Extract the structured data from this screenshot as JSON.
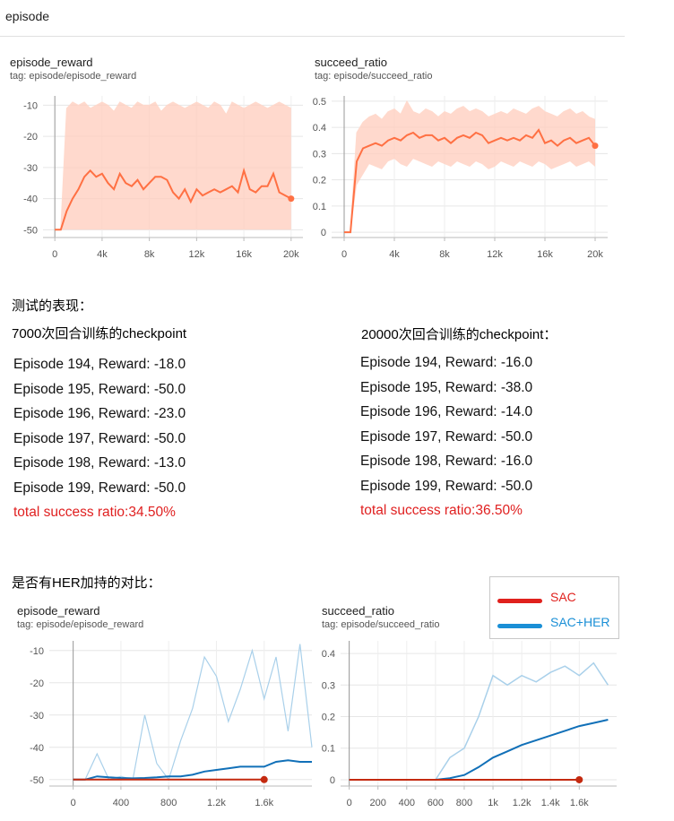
{
  "section": {
    "title": "episode"
  },
  "top_charts": {
    "reward": {
      "title": "episode_reward",
      "tag": "tag: episode/episode_reward"
    },
    "ratio": {
      "title": "succeed_ratio",
      "tag": "tag: episode/succeed_ratio"
    }
  },
  "notes": {
    "test_heading": "测试的表现：",
    "col1_heading": "7000次回合训练的checkpoint",
    "col2_heading": "20000次回合训练的checkpoint：",
    "col1_lines": [
      "Episode 194, Reward: -18.0",
      "Episode 195, Reward: -50.0",
      "Episode 196, Reward: -23.0",
      "Episode 197, Reward: -50.0",
      "Episode 198, Reward: -13.0",
      "Episode 199, Reward: -50.0"
    ],
    "col1_total": "total success ratio:34.50%",
    "col2_lines": [
      "Episode 194, Reward: -16.0",
      "Episode 195, Reward: -38.0",
      "Episode 196, Reward: -14.0",
      "Episode 197, Reward: -50.0",
      "Episode 198, Reward: -16.0",
      "Episode 199, Reward: -50.0"
    ],
    "col2_total": "total success ratio:36.50%",
    "compare_heading": "是否有HER加持的对比："
  },
  "bottom_charts": {
    "reward": {
      "title": "episode_reward",
      "tag": "tag: episode/episode_reward"
    },
    "ratio": {
      "title": "succeed_ratio",
      "tag": "tag: episode/succeed_ratio"
    }
  },
  "legend": {
    "sac": "SAC",
    "sac_her": "SAC+HER",
    "sac_color": "#e0211d",
    "sac_her_color": "#1a8fd6"
  },
  "colors": {
    "orange": "#ff7043",
    "orange_faint": "#ffccbc",
    "blue": "#1170b8",
    "blue_faint": "#a9d0ea",
    "red": "#c42a10"
  },
  "chart_data": [
    {
      "type": "line",
      "title": "episode_reward",
      "xticks": [
        "0",
        "4k",
        "8k",
        "12k",
        "16k",
        "20k"
      ],
      "yticks": [
        "-10",
        "-20",
        "-30",
        "-40",
        "-50"
      ],
      "xlim": [
        -1000,
        21000
      ],
      "ylim": [
        -52.5,
        -7
      ],
      "series": [
        {
          "x": [
            0,
            500,
            1000,
            1500,
            2000,
            2500,
            3000,
            3500,
            4000,
            4500,
            5000,
            5500,
            6000,
            6500,
            7000,
            7500,
            8000,
            8500,
            9000,
            9500,
            10000,
            10500,
            11000,
            11500,
            12000,
            12500,
            13000,
            13500,
            14000,
            14500,
            15000,
            15500,
            16000,
            16500,
            17000,
            17500,
            18000,
            18500,
            19000,
            19500,
            20000
          ],
          "smoothed": [
            -50,
            -50,
            -44,
            -40,
            -37,
            -33,
            -31,
            -33,
            -32,
            -35,
            -37,
            -32,
            -35,
            -36,
            -34,
            -37,
            -35,
            -33,
            -33,
            -34,
            -38,
            -40,
            -37,
            -41,
            -37,
            -39,
            -38,
            -37,
            -38,
            -37,
            -36,
            -38,
            -31,
            -37,
            -38,
            -36,
            -36,
            -32,
            -38,
            -39,
            -40
          ],
          "raw_min": [
            -50,
            -50,
            -50,
            -50,
            -50,
            -50,
            -50,
            -50,
            -50,
            -50,
            -50,
            -50,
            -50,
            -50,
            -50,
            -50,
            -50,
            -50,
            -50,
            -50,
            -50,
            -50,
            -50,
            -50,
            -50,
            -50,
            -50,
            -50,
            -50,
            -50,
            -50,
            -50,
            -50,
            -50,
            -50,
            -50,
            -50,
            -50,
            -50,
            -50,
            -50
          ],
          "raw_max": [
            -50,
            -50,
            -11,
            -9,
            -10,
            -9,
            -11,
            -10,
            -9,
            -10,
            -12,
            -9,
            -10,
            -11,
            -9,
            -10,
            -10,
            -9,
            -12,
            -10,
            -9,
            -10,
            -11,
            -10,
            -9,
            -10,
            -11,
            -9,
            -10,
            -13,
            -9,
            -10,
            -11,
            -10,
            -9,
            -10,
            -11,
            -10,
            -9,
            -10,
            -11
          ]
        }
      ]
    },
    {
      "type": "line",
      "title": "succeed_ratio",
      "xticks": [
        "0",
        "4k",
        "8k",
        "12k",
        "16k",
        "20k"
      ],
      "yticks": [
        "0.5",
        "0.4",
        "0.3",
        "0.2",
        "0.1",
        "0"
      ],
      "xlim": [
        -1000,
        21000
      ],
      "ylim": [
        -0.02,
        0.52
      ],
      "series": [
        {
          "x": [
            0,
            500,
            1000,
            1500,
            2000,
            2500,
            3000,
            3500,
            4000,
            4500,
            5000,
            5500,
            6000,
            6500,
            7000,
            7500,
            8000,
            8500,
            9000,
            9500,
            10000,
            10500,
            11000,
            11500,
            12000,
            12500,
            13000,
            13500,
            14000,
            14500,
            15000,
            15500,
            16000,
            16500,
            17000,
            17500,
            18000,
            18500,
            19000,
            19500,
            20000
          ],
          "smoothed": [
            0,
            0,
            0.27,
            0.32,
            0.33,
            0.34,
            0.33,
            0.35,
            0.36,
            0.35,
            0.37,
            0.38,
            0.36,
            0.37,
            0.37,
            0.35,
            0.36,
            0.34,
            0.36,
            0.37,
            0.36,
            0.38,
            0.37,
            0.34,
            0.35,
            0.36,
            0.35,
            0.36,
            0.35,
            0.37,
            0.36,
            0.39,
            0.34,
            0.35,
            0.33,
            0.35,
            0.36,
            0.34,
            0.35,
            0.36,
            0.33
          ],
          "raw_min": [
            0,
            0,
            0.18,
            0.22,
            0.26,
            0.25,
            0.24,
            0.27,
            0.28,
            0.26,
            0.25,
            0.28,
            0.27,
            0.26,
            0.25,
            0.27,
            0.26,
            0.25,
            0.27,
            0.26,
            0.25,
            0.27,
            0.26,
            0.24,
            0.25,
            0.27,
            0.26,
            0.25,
            0.27,
            0.26,
            0.25,
            0.27,
            0.26,
            0.24,
            0.25,
            0.26,
            0.27,
            0.25,
            0.26,
            0.27,
            0.25
          ],
          "raw_max": [
            0,
            0,
            0.38,
            0.42,
            0.44,
            0.45,
            0.43,
            0.46,
            0.47,
            0.45,
            0.5,
            0.46,
            0.45,
            0.47,
            0.46,
            0.44,
            0.46,
            0.45,
            0.47,
            0.48,
            0.46,
            0.47,
            0.46,
            0.44,
            0.45,
            0.46,
            0.45,
            0.47,
            0.46,
            0.45,
            0.47,
            0.48,
            0.46,
            0.45,
            0.44,
            0.46,
            0.47,
            0.45,
            0.46,
            0.44,
            0.43
          ]
        }
      ]
    },
    {
      "type": "line",
      "title": "episode_reward",
      "xticks": [
        "0",
        "400",
        "800",
        "1.2k",
        "1.6k"
      ],
      "yticks": [
        "-10",
        "-20",
        "-30",
        "-40",
        "-50"
      ],
      "xlim": [
        -200,
        2000
      ],
      "ylim": [
        -52,
        -7
      ],
      "series": [
        {
          "name": "SAC",
          "x": [
            0,
            1600
          ],
          "y": [
            -50,
            -50
          ]
        },
        {
          "name": "SAC+HER",
          "x": [
            0,
            100,
            200,
            300,
            400,
            500,
            600,
            700,
            800,
            900,
            1000,
            1100,
            1200,
            1300,
            1400,
            1500,
            1600,
            1700,
            1800,
            1900,
            2000
          ],
          "y": [
            -50,
            -50,
            -49,
            -49.3,
            -49.5,
            -49.6,
            -49.5,
            -49.3,
            -49,
            -49,
            -48.5,
            -47.5,
            -47,
            -46.5,
            -46,
            -46,
            -46,
            -44.5,
            -44,
            -44.5,
            -44.5
          ],
          "raw_peaks": [
            -50,
            -50,
            -42,
            -50,
            -49,
            -50,
            -30,
            -45,
            -50,
            -38,
            -28,
            -12,
            -18,
            -32,
            -22,
            -10,
            -25,
            -12,
            -35,
            -8,
            -40
          ]
        }
      ]
    },
    {
      "type": "line",
      "title": "succeed_ratio",
      "xticks": [
        "0",
        "200",
        "400",
        "600",
        "800",
        "1k",
        "1.2k",
        "1.4k",
        "1.6k"
      ],
      "yticks": [
        "0.4",
        "0.3",
        "0.2",
        "0.1",
        "0"
      ],
      "xlim": [
        -60,
        1860
      ],
      "ylim": [
        -0.02,
        0.44
      ],
      "series": [
        {
          "name": "SAC",
          "x": [
            0,
            1600
          ],
          "y": [
            0,
            0
          ]
        },
        {
          "name": "SAC+HER",
          "x": [
            0,
            100,
            200,
            300,
            400,
            500,
            600,
            700,
            800,
            900,
            1000,
            1100,
            1200,
            1300,
            1400,
            1500,
            1600,
            1700,
            1800
          ],
          "y": [
            0,
            0,
            0,
            0,
            0,
            0,
            0,
            0.005,
            0.015,
            0.04,
            0.07,
            0.09,
            0.11,
            0.125,
            0.14,
            0.155,
            0.17,
            0.18,
            0.19
          ],
          "raw": [
            0,
            0,
            0,
            0,
            0,
            0,
            0,
            0.07,
            0.1,
            0.2,
            0.33,
            0.3,
            0.33,
            0.31,
            0.34,
            0.36,
            0.33,
            0.37,
            0.3
          ]
        }
      ]
    }
  ]
}
